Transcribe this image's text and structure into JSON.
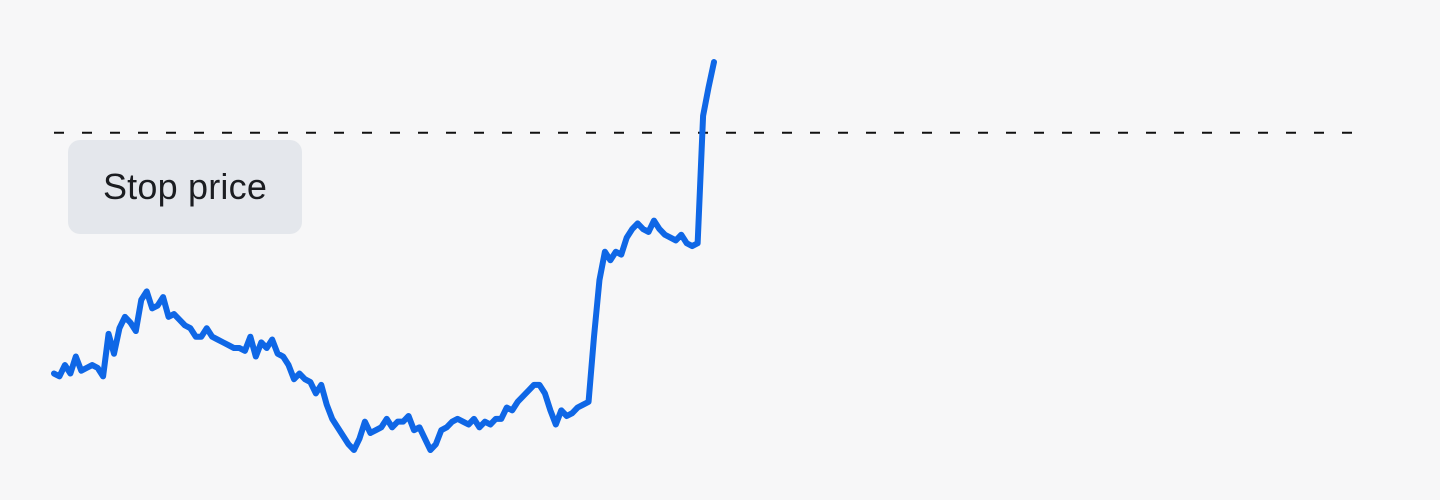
{
  "chart_data": {
    "type": "line",
    "stop_price_label": "Stop price",
    "stop_price_level": 122,
    "colors": {
      "line": "#0f67e6",
      "stop_line": "#111111",
      "label_bg": "#e4e7ec",
      "background": "#f7f7f8"
    },
    "ylim": [
      0,
      220
    ],
    "grid": false,
    "series": [
      {
        "values": [
          37,
          36,
          40,
          37,
          43,
          38,
          39,
          40,
          39,
          36,
          51,
          44,
          53,
          57,
          55,
          52,
          63,
          66,
          60,
          61,
          64,
          57,
          58,
          56,
          54,
          53,
          50,
          50,
          53,
          50,
          49,
          48,
          47,
          46,
          46,
          45,
          50,
          43,
          48,
          46,
          49,
          44,
          43,
          40,
          35,
          37,
          35,
          34,
          30,
          33,
          26,
          21,
          18,
          15,
          12,
          10,
          14,
          20,
          16,
          17,
          18,
          21,
          18,
          20,
          20,
          22,
          17,
          18,
          14,
          10,
          12,
          17,
          18,
          20,
          21,
          20,
          19,
          21,
          18,
          20,
          19,
          21,
          21,
          25,
          24,
          27,
          29,
          31,
          33,
          33,
          30,
          24,
          19,
          24,
          22,
          23,
          25,
          26,
          27,
          50,
          70,
          80,
          77,
          80,
          79,
          85,
          88,
          90,
          88,
          87,
          91,
          88,
          86,
          85,
          84,
          86,
          83,
          82,
          83,
          128,
          138,
          147
        ]
      }
    ]
  }
}
